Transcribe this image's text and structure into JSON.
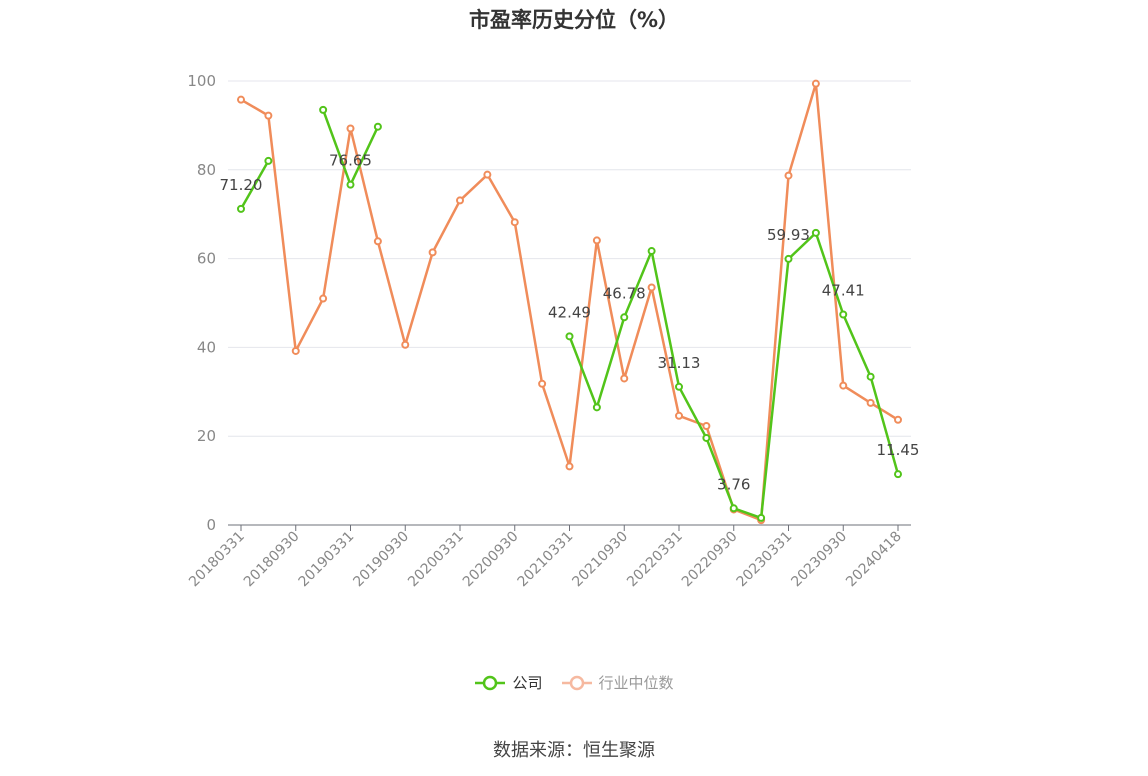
{
  "chart_data": {
    "type": "line",
    "title": "市盈率历史分位（%）",
    "ylim": [
      0,
      100
    ],
    "yticks": [
      0,
      20,
      40,
      60,
      80,
      100
    ],
    "grid": "horizontal",
    "legend_placement": "bottom-center",
    "x": [
      "20180331",
      "20180630",
      "20180930",
      "20181231",
      "20190331",
      "20190630",
      "20190930",
      "20191231",
      "20200331",
      "20200630",
      "20200930",
      "20201231",
      "20210331",
      "20210630",
      "20210930",
      "20211231",
      "20220331",
      "20220630",
      "20220930",
      "20221231",
      "20230331",
      "20230630",
      "20230930",
      "20231231",
      "20240418"
    ],
    "xtick_labels": [
      "20180331",
      "20180930",
      "20190331",
      "20190930",
      "20200331",
      "20200930",
      "20210331",
      "20210930",
      "20220331",
      "20220930",
      "20230331",
      "20230930",
      "20240418"
    ],
    "series": [
      {
        "name": "公司",
        "color": "#52c41a",
        "values": [
          71.2,
          82.0,
          null,
          93.5,
          76.65,
          89.7,
          null,
          null,
          null,
          null,
          null,
          null,
          42.49,
          26.5,
          46.78,
          61.7,
          31.13,
          19.6,
          3.76,
          1.6,
          59.93,
          65.8,
          47.41,
          33.4,
          11.45
        ],
        "labels": [
          {
            "index": 0,
            "text": "71.20"
          },
          {
            "index": 4,
            "text": "76.65"
          },
          {
            "index": 12,
            "text": "42.49"
          },
          {
            "index": 14,
            "text": "46.78"
          },
          {
            "index": 16,
            "text": "31.13"
          },
          {
            "index": 18,
            "text": "3.76"
          },
          {
            "index": 20,
            "text": "59.93"
          },
          {
            "index": 22,
            "text": "47.41"
          },
          {
            "index": 24,
            "text": "11.45"
          }
        ]
      },
      {
        "name": "行业中位数",
        "color": "#f08c5a",
        "values": [
          95.8,
          92.2,
          39.2,
          51.0,
          89.3,
          63.9,
          40.6,
          61.4,
          73.1,
          78.9,
          68.2,
          31.8,
          13.2,
          64.1,
          33.0,
          53.5,
          24.6,
          22.3,
          3.5,
          1.1,
          78.7,
          99.4,
          31.4,
          27.5,
          23.7
        ]
      }
    ]
  },
  "legend": {
    "items": [
      {
        "label": "公司",
        "color": "#52c41a",
        "label_color": "#333333"
      },
      {
        "label": "行业中位数",
        "color": "#f6b9a0",
        "label_color": "#999999"
      }
    ]
  },
  "source": "数据来源：恒生聚源"
}
